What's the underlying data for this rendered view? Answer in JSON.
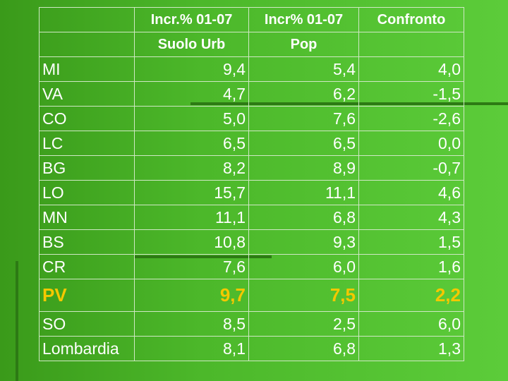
{
  "table": {
    "columns": [
      {
        "line1": "Incr.% 01-07",
        "line2": "Suolo Urb"
      },
      {
        "line1": "Incr% 01-07",
        "line2": "Pop"
      },
      {
        "line1": "Confronto"
      }
    ],
    "rows": [
      {
        "label": "MI",
        "cells": [
          "9,4",
          "5,4",
          "4,0"
        ]
      },
      {
        "label": "VA",
        "cells": [
          "4,7",
          "6,2",
          "-1,5"
        ]
      },
      {
        "label": "CO",
        "cells": [
          "5,0",
          "7,6",
          "-2,6"
        ]
      },
      {
        "label": "LC",
        "cells": [
          "6,5",
          "6,5",
          "0,0"
        ]
      },
      {
        "label": "BG",
        "cells": [
          "8,2",
          "8,9",
          "-0,7"
        ]
      },
      {
        "label": "LO",
        "cells": [
          "15,7",
          "11,1",
          "4,6"
        ]
      },
      {
        "label": "MN",
        "cells": [
          "11,1",
          "6,8",
          "4,3"
        ]
      },
      {
        "label": "BS",
        "cells": [
          "10,8",
          "9,3",
          "1,5"
        ]
      },
      {
        "label": "CR",
        "cells": [
          "7,6",
          "6,0",
          "1,6"
        ]
      },
      {
        "label": "PV",
        "cells": [
          "9,7",
          "7,5",
          "2,2"
        ],
        "color": "#f5c800"
      },
      {
        "label": "SO",
        "cells": [
          "8,5",
          "2,5",
          "6,0"
        ]
      },
      {
        "label": "Lombardia",
        "cells": [
          "8,1",
          "6,8",
          "1,3"
        ]
      }
    ]
  }
}
